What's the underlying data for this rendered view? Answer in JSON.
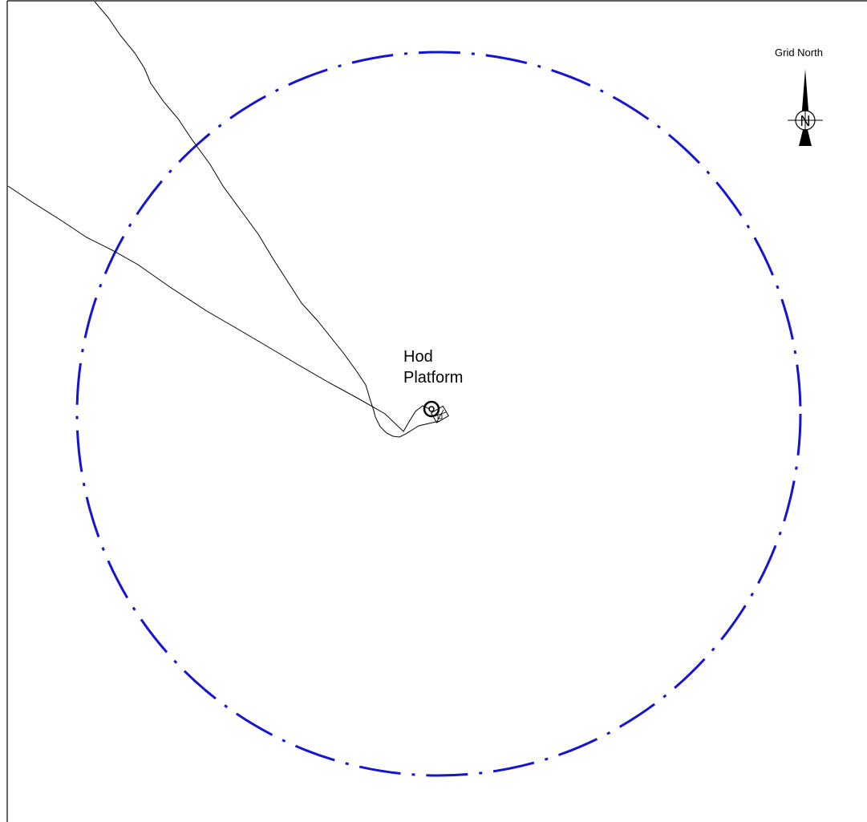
{
  "map": {
    "platform_name_line1": "Hod",
    "platform_name_line2": "Platform",
    "north_arrow_label": "Grid North",
    "north_arrow_letter": "N",
    "zone_circle_color": "#1414d2",
    "pipeline_color": "#000000",
    "frame_color": "#000000"
  }
}
